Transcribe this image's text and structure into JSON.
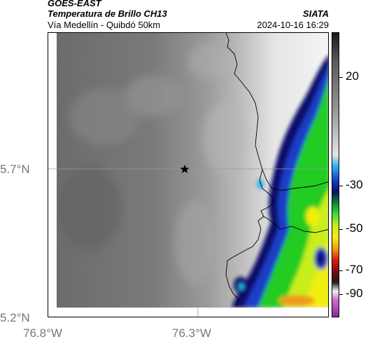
{
  "header": {
    "satellite": "GOES-EAST",
    "product": "Temperatura de Brillo CH13",
    "subtitle": "Vía Medellín - Quibdó 50km",
    "organization": "SIATA",
    "timestamp": "2024-10-16 16:29"
  },
  "axes": {
    "lat_labels": [
      "5.7°N",
      "5.2°N"
    ],
    "lon_labels": [
      "76.8°W",
      "76.3°W"
    ]
  },
  "colorbar": {
    "ticks": [
      "20",
      "-30",
      "-50",
      "-70",
      "-90"
    ],
    "stops": [
      "#1a1a1a",
      "#5a5a5a",
      "#9a9a9a",
      "#e4e4e4",
      "#2ab4ee",
      "#1a3cc8",
      "#08106a",
      "#0a8a2a",
      "#3ce03c",
      "#c8ee1c",
      "#f0ee10",
      "#f0a00a",
      "#d8200a",
      "#6a0a0a",
      "#222222",
      "#f0f0f0",
      "#d070d0",
      "#8a2a9a"
    ]
  },
  "map": {
    "marker": "star-marker",
    "colors": {
      "cold_land": "#6a6a6a",
      "warm_land": "#ededed",
      "cloud_green": "#22cc22",
      "cloud_yellow": "#e8ee10",
      "cloud_blue": "#1030c0",
      "cloud_navy": "#0a1070",
      "cloud_orange": "#f09a1a"
    }
  }
}
